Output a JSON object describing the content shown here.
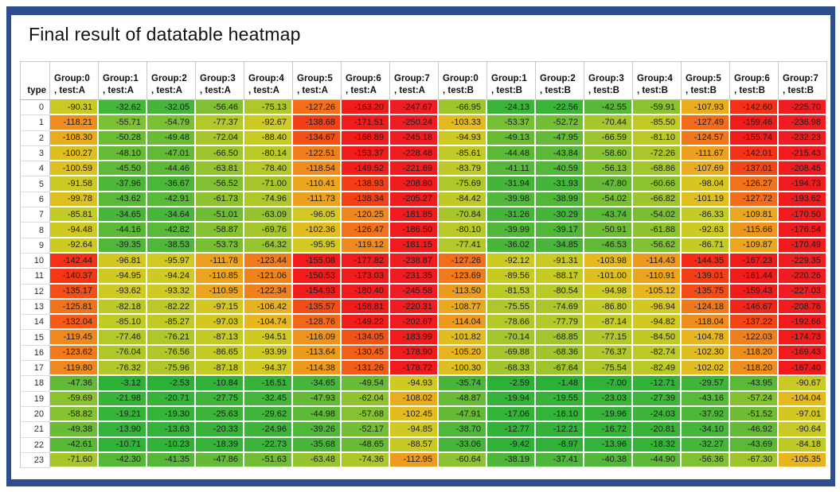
{
  "frame": {
    "border_color": "#2e4d8c",
    "background": "#ffffff"
  },
  "title": "Final result of datatable heatmap",
  "chart_data": {
    "type": "heatmap",
    "title": "Final result of datatable heatmap",
    "row_header_label": "type",
    "value_format": "fixed-2-decimals",
    "grid": "thin white separators between colored cells, gray lines in header and row-label column",
    "text_color": "#1c1c1c",
    "columns": [
      {
        "group": "Group:0",
        "test": ", test:A"
      },
      {
        "group": "Group:1",
        "test": ", test:A"
      },
      {
        "group": "Group:2",
        "test": ", test:A"
      },
      {
        "group": "Group:3",
        "test": ", test:A"
      },
      {
        "group": "Group:4",
        "test": ", test:A"
      },
      {
        "group": "Group:5",
        "test": ", test:A"
      },
      {
        "group": "Group:6",
        "test": ", test:A"
      },
      {
        "group": "Group:7",
        "test": ", test:A"
      },
      {
        "group": "Group:0",
        "test": ", test:B"
      },
      {
        "group": "Group:1",
        "test": ", test:B"
      },
      {
        "group": "Group:2",
        "test": ", test:B"
      },
      {
        "group": "Group:3",
        "test": ", test:B"
      },
      {
        "group": "Group:4",
        "test": ", test:B"
      },
      {
        "group": "Group:5",
        "test": ", test:B"
      },
      {
        "group": "Group:6",
        "test": ", test:B"
      },
      {
        "group": "Group:7",
        "test": ", test:B"
      }
    ],
    "row_labels": [
      0,
      1,
      2,
      3,
      4,
      5,
      6,
      7,
      8,
      9,
      10,
      11,
      12,
      13,
      14,
      15,
      16,
      17,
      18,
      19,
      20,
      21,
      22,
      23
    ],
    "values": [
      [
        -90.31,
        -32.62,
        -32.05,
        -56.46,
        -75.13,
        -127.26,
        -163.2,
        -247.67,
        -66.95,
        -24.13,
        -22.56,
        -42.55,
        -59.91,
        -107.93,
        -142.6,
        -225.7
      ],
      [
        -118.21,
        -55.71,
        -54.79,
        -77.37,
        -92.67,
        -138.68,
        -171.51,
        -250.24,
        -103.33,
        -53.37,
        -52.72,
        -70.44,
        -85.5,
        -127.49,
        -159.46,
        -236.98
      ],
      [
        -108.3,
        -50.28,
        -49.48,
        -72.04,
        -88.4,
        -134.67,
        -166.89,
        -245.18,
        -94.93,
        -49.13,
        -47.95,
        -66.59,
        -81.1,
        -124.57,
        -155.74,
        -232.23
      ],
      [
        -100.27,
        -48.1,
        -47.01,
        -66.5,
        -80.14,
        -122.51,
        -153.37,
        -228.48,
        -85.61,
        -44.48,
        -43.84,
        -58.6,
        -72.26,
        -111.67,
        -142.01,
        -215.43
      ],
      [
        -100.59,
        -45.5,
        -44.46,
        -63.81,
        -78.4,
        -118.54,
        -149.52,
        -221.69,
        -83.79,
        -41.11,
        -40.59,
        -56.13,
        -68.86,
        -107.69,
        -137.01,
        -208.45
      ],
      [
        -91.58,
        -37.96,
        -36.67,
        -56.52,
        -71.0,
        -110.41,
        -138.93,
        -208.8,
        -75.69,
        -31.94,
        -31.93,
        -47.8,
        -60.66,
        -98.04,
        -126.27,
        -194.73
      ],
      [
        -99.78,
        -43.62,
        -42.91,
        -61.73,
        -74.96,
        -111.73,
        -138.34,
        -205.27,
        -84.42,
        -39.98,
        -38.99,
        -54.02,
        -66.82,
        -101.19,
        -127.72,
        -193.62
      ],
      [
        -85.81,
        -34.65,
        -34.64,
        -51.01,
        -63.09,
        -96.05,
        -120.25,
        -181.85,
        -70.84,
        -31.26,
        -30.29,
        -43.74,
        -54.02,
        -86.33,
        -109.81,
        -170.5
      ],
      [
        -94.48,
        -44.16,
        -42.82,
        -58.87,
        -69.76,
        -102.36,
        -126.47,
        -186.5,
        -80.1,
        -39.99,
        -39.17,
        -50.91,
        -61.88,
        -92.63,
        -115.66,
        -176.54
      ],
      [
        -92.64,
        -39.35,
        -38.53,
        -53.73,
        -64.32,
        -95.95,
        -119.12,
        -181.15,
        -77.41,
        -36.02,
        -34.85,
        -46.53,
        -56.62,
        -86.71,
        -109.87,
        -170.49
      ],
      [
        -142.44,
        -96.81,
        -95.97,
        -111.78,
        -123.44,
        -155.08,
        -177.82,
        -238.87,
        -127.26,
        -92.12,
        -91.31,
        -103.98,
        -114.43,
        -144.35,
        -167.23,
        -229.35
      ],
      [
        -140.37,
        -94.95,
        -94.24,
        -110.85,
        -121.06,
        -150.53,
        -173.03,
        -231.35,
        -123.69,
        -89.56,
        -88.17,
        -101.0,
        -110.91,
        -139.01,
        -161.44,
        -220.26
      ],
      [
        -135.17,
        -93.62,
        -93.32,
        -110.95,
        -122.34,
        -154.93,
        -180.4,
        -245.58,
        -113.5,
        -81.53,
        -80.54,
        -94.98,
        -105.12,
        -135.75,
        -159.43,
        -227.03
      ],
      [
        -125.81,
        -82.18,
        -82.22,
        -97.15,
        -106.42,
        -135.57,
        -158.81,
        -220.31,
        -108.77,
        -75.55,
        -74.69,
        -86.8,
        -96.94,
        -124.18,
        -146.67,
        -208.76
      ],
      [
        -132.04,
        -85.1,
        -85.27,
        -97.03,
        -104.74,
        -128.76,
        -149.22,
        -202.67,
        -114.04,
        -78.66,
        -77.79,
        -87.14,
        -94.82,
        -118.04,
        -137.22,
        -192.66
      ],
      [
        -119.45,
        -77.46,
        -76.21,
        -87.13,
        -94.51,
        -116.09,
        -134.05,
        -183.99,
        -101.82,
        -70.14,
        -68.85,
        -77.15,
        -84.5,
        -104.78,
        -122.03,
        -174.73
      ],
      [
        -123.62,
        -76.04,
        -76.56,
        -86.65,
        -93.99,
        -113.64,
        -130.45,
        -178.9,
        -105.2,
        -69.88,
        -68.36,
        -76.37,
        -82.74,
        -102.3,
        -118.2,
        -169.43
      ],
      [
        -119.8,
        -76.32,
        -75.96,
        -87.18,
        -94.37,
        -114.38,
        -131.26,
        -178.72,
        -100.3,
        -68.33,
        -67.64,
        -75.54,
        -82.49,
        -102.02,
        -118.2,
        -167.4
      ],
      [
        -47.36,
        -3.12,
        -2.53,
        -10.84,
        -16.51,
        -34.65,
        -49.54,
        -94.93,
        -35.74,
        -2.59,
        -1.48,
        -7.0,
        -12.71,
        -29.57,
        -43.95,
        -90.67
      ],
      [
        -59.69,
        -21.98,
        -20.71,
        -27.75,
        -32.45,
        -47.93,
        -62.04,
        -108.02,
        -48.87,
        -19.94,
        -19.55,
        -23.03,
        -27.39,
        -43.16,
        -57.24,
        -104.04
      ],
      [
        -58.82,
        -19.21,
        -19.3,
        -25.63,
        -29.62,
        -44.98,
        -57.68,
        -102.45,
        -47.91,
        -17.06,
        -16.1,
        -19.96,
        -24.03,
        -37.92,
        -51.52,
        -97.01
      ],
      [
        -49.38,
        -13.9,
        -13.63,
        -20.33,
        -24.96,
        -39.26,
        -52.17,
        -94.85,
        -38.7,
        -12.77,
        -12.21,
        -16.72,
        -20.81,
        -34.1,
        -46.92,
        -90.64
      ],
      [
        -42.61,
        -10.71,
        -10.23,
        -18.39,
        -22.73,
        -35.68,
        -48.65,
        -88.57,
        -33.06,
        -9.42,
        -8.97,
        -13.96,
        -18.32,
        -32.27,
        -43.69,
        -84.18
      ],
      [
        -71.6,
        -42.3,
        -41.35,
        -47.86,
        -51.63,
        -63.48,
        -74.36,
        -112.95,
        -60.64,
        -38.19,
        -37.41,
        -40.38,
        -44.9,
        -56.36,
        -67.3,
        -105.35
      ]
    ],
    "color_scale": {
      "description": "red (most negative, saturates below -150) through orange and yellow to green (near 0)",
      "vmin": -250.24,
      "vmax": -1.48,
      "anchors": [
        [
          -260,
          "#ee1c24"
        ],
        [
          -150,
          "#f21b1b"
        ],
        [
          -141,
          "#f43517"
        ],
        [
          -134,
          "#f25317"
        ],
        [
          -127,
          "#f26f1b"
        ],
        [
          -120,
          "#ef871e"
        ],
        [
          -112,
          "#eda01e"
        ],
        [
          -104,
          "#e7b91f"
        ],
        [
          -96,
          "#d2c922"
        ],
        [
          -86,
          "#c3cb25"
        ],
        [
          -76,
          "#b0c72a"
        ],
        [
          -66,
          "#9cc52e"
        ],
        [
          -57,
          "#82c133"
        ],
        [
          -47,
          "#62ba37"
        ],
        [
          -35,
          "#47b63a"
        ],
        [
          -18,
          "#35b339"
        ],
        [
          0,
          "#2bb137"
        ]
      ]
    }
  }
}
